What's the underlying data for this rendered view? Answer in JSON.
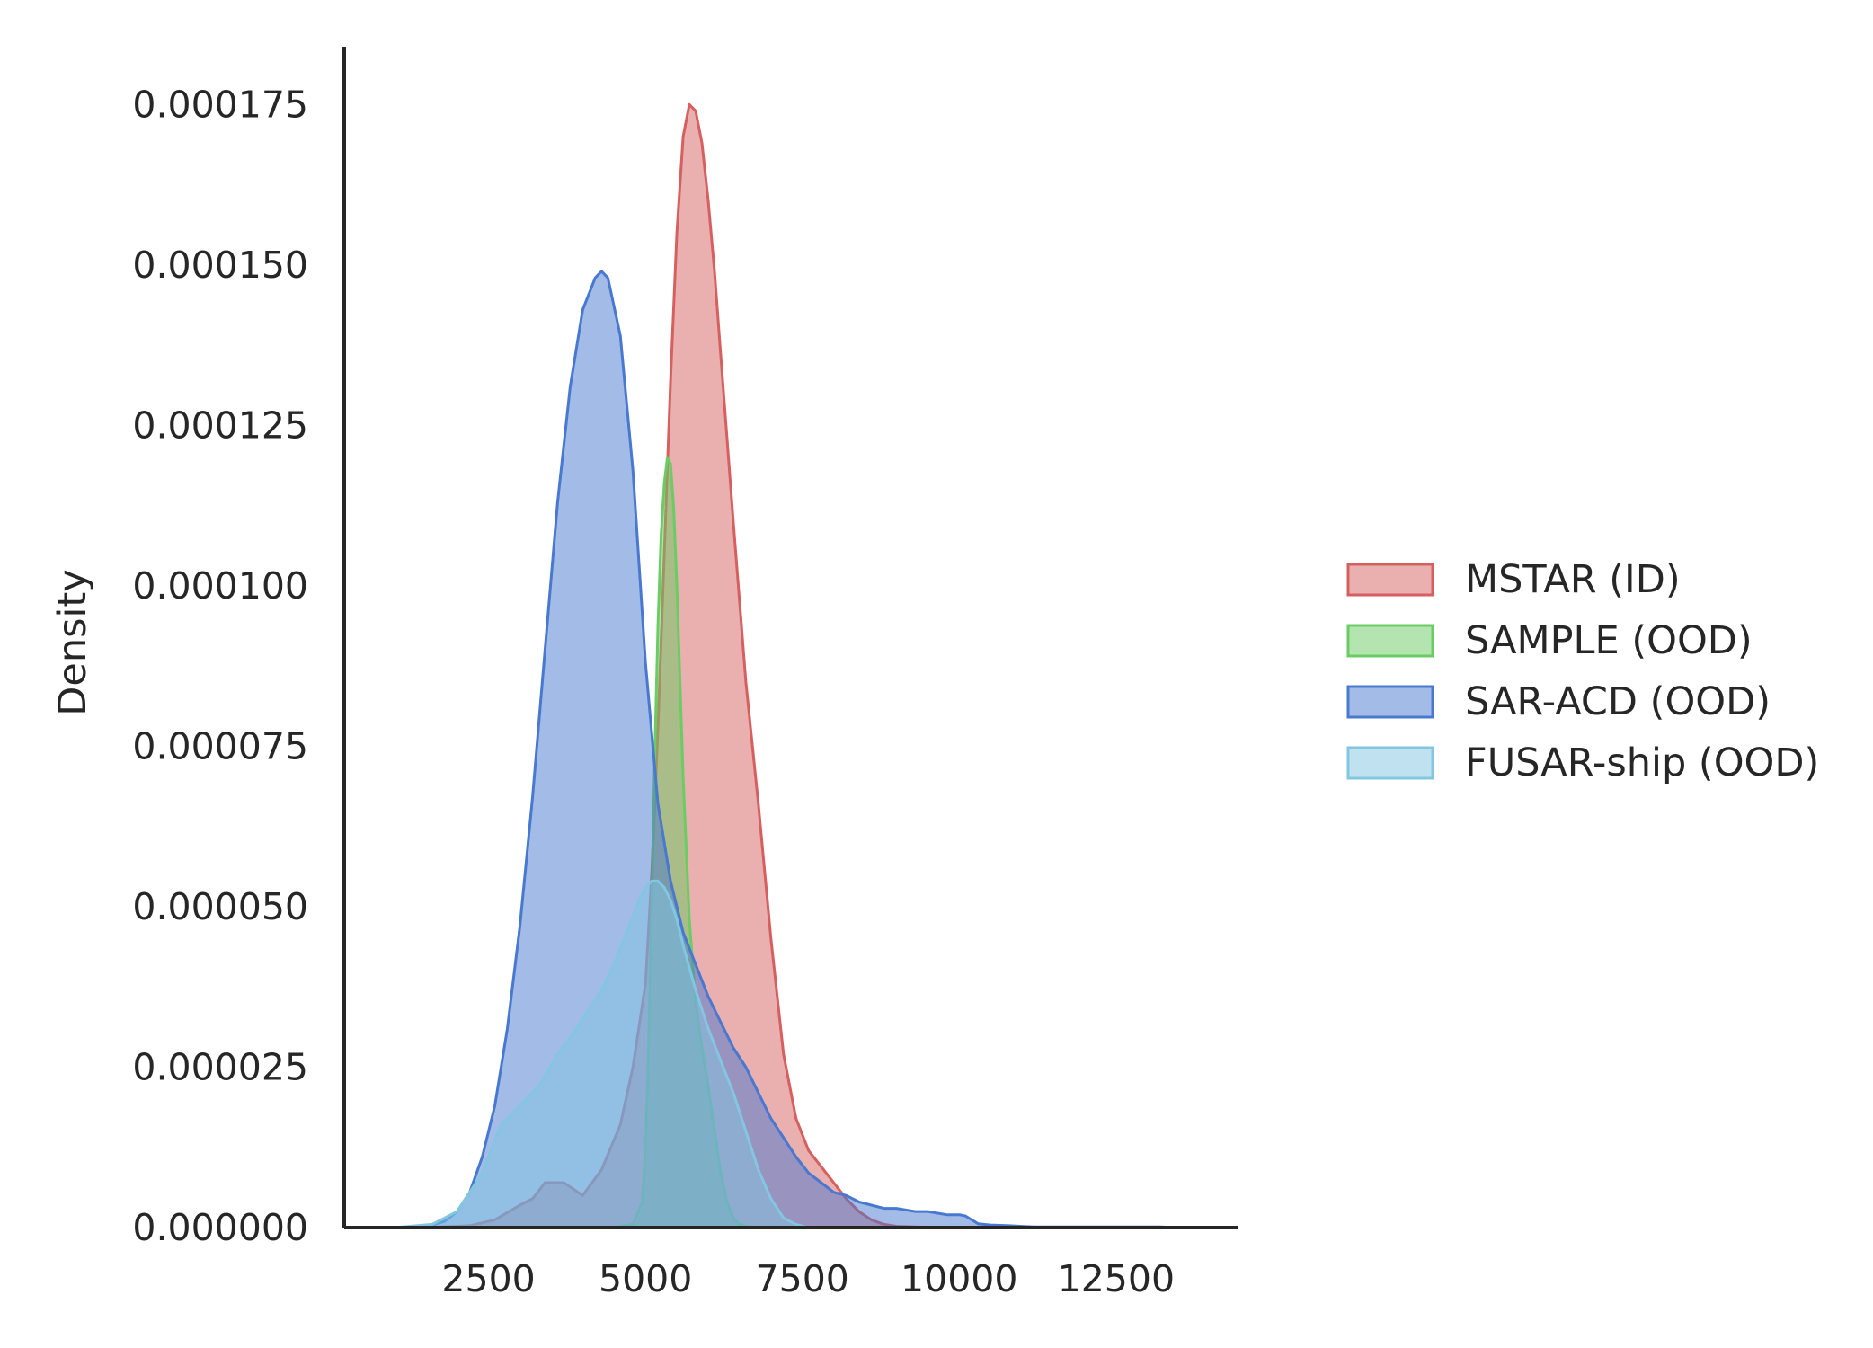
{
  "chart_data": {
    "type": "area",
    "title": "",
    "xlabel": "",
    "ylabel": "Density",
    "xlim": [
      200,
      14450
    ],
    "ylim": [
      0,
      0.000184
    ],
    "x_ticks": [
      2500,
      5000,
      7500,
      10000,
      12500
    ],
    "x_tick_labels": [
      "2500",
      "5000",
      "7500",
      "10000",
      "12500"
    ],
    "y_ticks": [
      0,
      2.5e-05,
      5e-05,
      7.5e-05,
      0.0001,
      0.000125,
      0.00015,
      0.000175
    ],
    "y_tick_labels": [
      "0.000000",
      "0.000025",
      "0.000050",
      "0.000075",
      "0.000100",
      "0.000125",
      "0.000150",
      "0.000175"
    ],
    "grid": false,
    "legend_position": "right",
    "series": [
      {
        "name": "MSTAR (ID)",
        "color": "#d65f5f",
        "x": [
          1500,
          2200,
          2600,
          3000,
          3200,
          3400,
          3700,
          4000,
          4300,
          4600,
          4800,
          5000,
          5100,
          5200,
          5300,
          5400,
          5500,
          5600,
          5700,
          5800,
          5900,
          6000,
          6100,
          6200,
          6400,
          6600,
          6800,
          7000,
          7200,
          7400,
          7600,
          7800,
          8000,
          8200,
          8400,
          8600,
          8800,
          9000,
          9300,
          9600
        ],
        "y": [
          0,
          3e-07,
          1.2e-06,
          3.5e-06,
          4.5e-06,
          7e-06,
          7e-06,
          5e-06,
          9e-06,
          1.6e-05,
          2.5e-05,
          3.8e-05,
          5.5e-05,
          7.8e-05,
          0.000105,
          0.000132,
          0.000155,
          0.00017,
          0.000175,
          0.000174,
          0.000169,
          0.00016,
          0.000149,
          0.000136,
          0.00011,
          8.5e-05,
          6.6e-05,
          4.5e-05,
          2.7e-05,
          1.7e-05,
          1.2e-05,
          9.5e-06,
          7e-06,
          4.5e-06,
          2.5e-06,
          1.2e-06,
          5e-07,
          2e-07,
          1e-07,
          0
        ]
      },
      {
        "name": "SAMPLE (OOD)",
        "color": "#6acc64",
        "x": [
          4500,
          4800,
          4950,
          5000,
          5050,
          5100,
          5150,
          5200,
          5250,
          5300,
          5350,
          5400,
          5450,
          5500,
          5550,
          5600,
          5700,
          5800,
          5900,
          6000,
          6100,
          6200,
          6300,
          6400,
          6500,
          6600,
          6700,
          6800,
          7000
        ],
        "y": [
          0,
          5e-07,
          4e-06,
          1.2e-05,
          2.8e-05,
          5e-05,
          7.4e-05,
          9.4e-05,
          0.000108,
          0.000116,
          0.00012,
          0.000119,
          0.000112,
          0.0001,
          8.5e-05,
          7e-05,
          4.8e-05,
          3.5e-05,
          2.8e-05,
          2.2e-05,
          1.5e-05,
          8.5e-06,
          4e-06,
          1.5e-06,
          5e-07,
          2e-07,
          1e-07,
          0,
          0
        ]
      },
      {
        "name": "SAR-ACD (OOD)",
        "color": "#4878d0",
        "x": [
          1000,
          1500,
          1800,
          2000,
          2200,
          2400,
          2600,
          2800,
          3000,
          3200,
          3400,
          3600,
          3800,
          4000,
          4200,
          4300,
          4400,
          4600,
          4800,
          5000,
          5200,
          5400,
          5600,
          5800,
          6000,
          6200,
          6400,
          6600,
          6800,
          7000,
          7200,
          7400,
          7600,
          7800,
          8000,
          8200,
          8400,
          8600,
          8800,
          9000,
          9300,
          9500,
          9800,
          10000,
          10100,
          10200,
          10300,
          10500,
          10800,
          11200,
          11700,
          12300,
          12800,
          13200,
          13500
        ],
        "y": [
          0,
          0,
          1e-06,
          2.5e-06,
          5.5e-06,
          1.1e-05,
          1.9e-05,
          3.1e-05,
          4.7e-05,
          6.7e-05,
          9e-05,
          0.000113,
          0.000131,
          0.000143,
          0.000148,
          0.000149,
          0.000148,
          0.000139,
          0.000118,
          8.8e-05,
          6.6e-05,
          5.4e-05,
          4.6e-05,
          4.1e-05,
          3.6e-05,
          3.2e-05,
          2.8e-05,
          2.5e-05,
          2.1e-05,
          1.7e-05,
          1.4e-05,
          1.1e-05,
          8.5e-06,
          7e-06,
          5.5e-06,
          5e-06,
          4e-06,
          3.5e-06,
          3e-06,
          3e-06,
          2.5e-06,
          2.5e-06,
          2e-06,
          2e-06,
          1.8e-06,
          1.2e-06,
          6e-07,
          4e-07,
          3e-07,
          1e-07,
          1e-07,
          1e-07,
          1e-07,
          1e-07,
          0
        ]
      },
      {
        "name": "FUSAR-ship (OOD)",
        "color": "#82c6e2",
        "x": [
          1000,
          1600,
          2000,
          2400,
          2700,
          3000,
          3300,
          3600,
          3900,
          4100,
          4300,
          4500,
          4700,
          4900,
          5000,
          5100,
          5200,
          5300,
          5400,
          5500,
          5600,
          5800,
          6000,
          6200,
          6400,
          6600,
          6800,
          7000,
          7200,
          7400,
          7600
        ],
        "y": [
          0,
          5e-07,
          2.5e-06,
          8.5e-06,
          1.6e-05,
          1.9e-05,
          2.2e-05,
          2.7e-05,
          3.1e-05,
          3.4e-05,
          3.7e-05,
          4.1e-05,
          4.6e-05,
          5.1e-05,
          5.3e-05,
          5.4e-05,
          5.4e-05,
          5.3e-05,
          5.1e-05,
          4.8e-05,
          4.4e-05,
          3.7e-05,
          3.1e-05,
          2.6e-05,
          2.1e-05,
          1.5e-05,
          9e-06,
          4.5e-06,
          1.5e-06,
          5e-07,
          0
        ]
      }
    ]
  }
}
